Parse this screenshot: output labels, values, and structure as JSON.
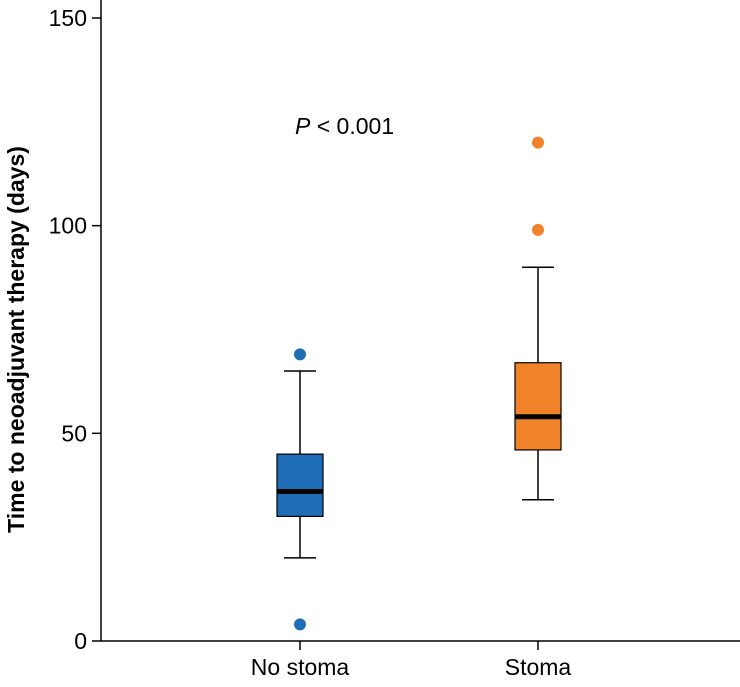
{
  "chart_data": {
    "type": "boxplot",
    "title": "",
    "xlabel": "",
    "ylabel": "Time to neoadjuvant therapy (days)",
    "ylim": [
      0,
      150
    ],
    "yticks": [
      0,
      50,
      100,
      150
    ],
    "ytick_labels": [
      "0",
      "50",
      "100",
      "150"
    ],
    "grid": false,
    "categories": [
      "No stoma",
      "Stoma"
    ],
    "boxes": [
      {
        "name": "No stoma",
        "color": "#1f6db5",
        "whisker_low": 20,
        "q1": 30,
        "median": 36,
        "q3": 45,
        "whisker_high": 65,
        "outliers": [
          69,
          4
        ]
      },
      {
        "name": "Stoma",
        "color": "#f0832a",
        "whisker_low": 34,
        "q1": 46,
        "median": 54,
        "q3": 67,
        "whisker_high": 90,
        "outliers": [
          120,
          99
        ]
      }
    ],
    "annotation": {
      "italic_part": "P",
      "rest": " < 0.001",
      "y_value": 124
    }
  }
}
